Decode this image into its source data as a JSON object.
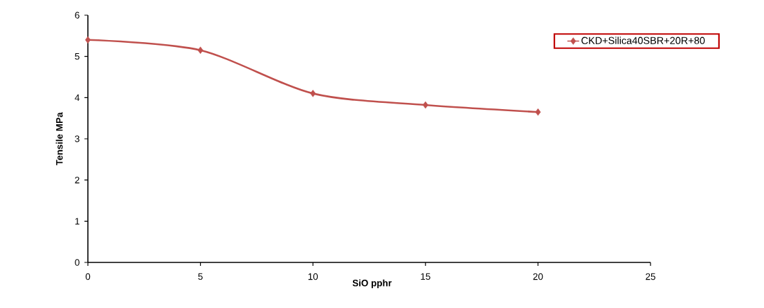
{
  "chart_data": {
    "type": "line",
    "xlabel": "SiO pphr",
    "ylabel": "Tensile MPa",
    "x": [
      0,
      5,
      10,
      15,
      20
    ],
    "series": [
      {
        "name": "CKD+Silica40SBR+20R+80",
        "color": "#c0504d",
        "values": [
          5.4,
          5.15,
          4.1,
          3.82,
          3.65
        ]
      }
    ],
    "xlim": [
      0,
      25
    ],
    "xticks": [
      0,
      5,
      10,
      15,
      20,
      25
    ],
    "ylim": [
      0,
      6
    ],
    "yticks": [
      0,
      1,
      2,
      3,
      4,
      5,
      6
    ],
    "legend": "top right",
    "marker": "diamond",
    "line_style": "solid"
  }
}
